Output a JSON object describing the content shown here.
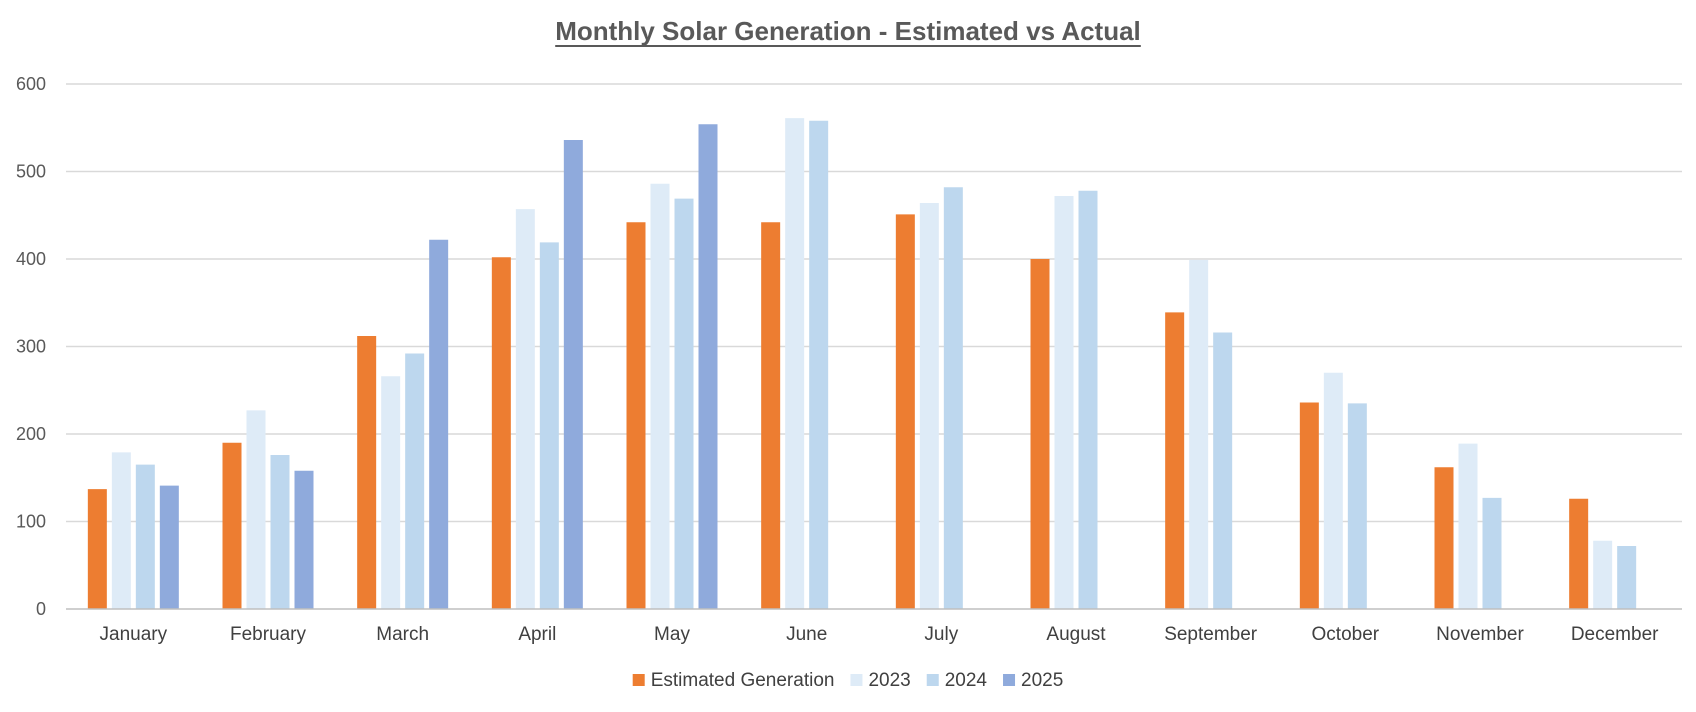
{
  "chart_data": {
    "type": "bar",
    "title": "Monthly Solar Generation - Estimated vs Actual",
    "xlabel": "",
    "ylabel": "",
    "ylim": [
      0,
      600
    ],
    "yticks": [
      0,
      100,
      200,
      300,
      400,
      500,
      600
    ],
    "grid": true,
    "legend_position": "bottom",
    "categories": [
      "January",
      "February",
      "March",
      "April",
      "May",
      "June",
      "July",
      "August",
      "September",
      "October",
      "November",
      "December"
    ],
    "series": [
      {
        "name": "Estimated Generation",
        "color": "#ED7D31",
        "values": [
          137,
          190,
          312,
          402,
          442,
          442,
          451,
          400,
          339,
          236,
          162,
          126
        ]
      },
      {
        "name": "2023",
        "color": "#DEEBF7",
        "values": [
          179,
          227,
          266,
          457,
          486,
          561,
          464,
          472,
          399,
          270,
          189,
          78
        ]
      },
      {
        "name": "2024",
        "color": "#BDD7EE",
        "values": [
          165,
          176,
          292,
          419,
          469,
          558,
          482,
          478,
          316,
          235,
          127,
          72
        ]
      },
      {
        "name": "2025",
        "color": "#8FAADC",
        "values": [
          141,
          158,
          422,
          536,
          554,
          null,
          null,
          null,
          null,
          null,
          null,
          null
        ]
      }
    ]
  }
}
